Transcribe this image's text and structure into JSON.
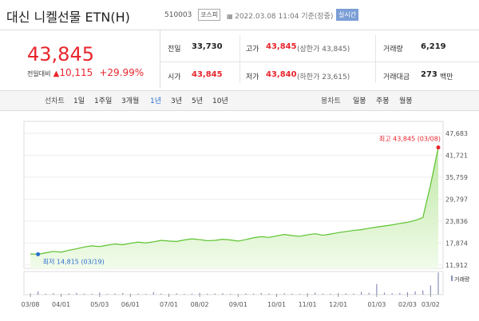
{
  "header": {
    "title": "대신 니켈선물 ETN(H)",
    "code": "510003",
    "market": "코스피",
    "timestamp": "2022.03.08 11:04 기준(장중)",
    "realtime": "실시간"
  },
  "quote": {
    "price": "43,845",
    "change_label": "전일대비",
    "change": "10,115",
    "change_rate": "+29.99%"
  },
  "stats": [
    {
      "label": "전일",
      "value": "33,730"
    },
    {
      "label": "고가",
      "value": "43,845",
      "note": "(상한가 43,845)"
    },
    {
      "label": "거래량",
      "value": "6,219"
    },
    {
      "label": "시가",
      "value": "43,845"
    },
    {
      "label": "저가",
      "value": "43,840",
      "note": "(하한가 23,615)"
    },
    {
      "label": "거래대금",
      "value": "273",
      "unit": "백만"
    }
  ],
  "line_tabs": {
    "label": "선차트",
    "items": [
      "1일",
      "1주일",
      "3개월",
      "1년",
      "3년",
      "5년",
      "10년"
    ],
    "selected": 3
  },
  "candle_tabs": {
    "label": "봉차트",
    "items": [
      "일봉",
      "주봉",
      "월봉"
    ]
  },
  "chart_data": {
    "type": "line",
    "categories": [
      "03/08",
      null,
      null,
      null,
      "04/01",
      null,
      null,
      null,
      null,
      "05/03",
      null,
      null,
      null,
      "06/01",
      null,
      null,
      null,
      null,
      "07/01",
      null,
      null,
      null,
      "08/02",
      null,
      null,
      null,
      null,
      "09/01",
      null,
      null,
      null,
      null,
      "10/01",
      null,
      null,
      null,
      "11/01",
      null,
      null,
      null,
      "12/01",
      null,
      null,
      null,
      null,
      "01/03",
      null,
      null,
      null,
      "02/03",
      null,
      null,
      "03/02",
      null
    ],
    "values": [
      14900,
      14815,
      15200,
      15600,
      15400,
      15900,
      16300,
      16800,
      17100,
      16900,
      17300,
      17600,
      17400,
      17800,
      18100,
      17900,
      18200,
      18600,
      18400,
      18300,
      18700,
      19000,
      18800,
      18500,
      18600,
      18900,
      18700,
      18400,
      18800,
      19300,
      19600,
      19400,
      19800,
      20200,
      19900,
      19700,
      20100,
      20400,
      20000,
      20300,
      20700,
      21000,
      21300,
      21500,
      21900,
      22200,
      22500,
      22800,
      23200,
      23500,
      24000,
      24800,
      33730,
      43845
    ],
    "color": "#5cc22e",
    "ylim": [
      11000,
      49200
    ],
    "yticks": [
      {
        "value": 11912,
        "label": "11,912"
      },
      {
        "value": 17874,
        "label": "17,874"
      },
      {
        "value": 23836,
        "label": "23,836"
      },
      {
        "value": 29797,
        "label": "29,797"
      },
      {
        "value": 35759,
        "label": "35,759"
      },
      {
        "value": 41721,
        "label": "41,721"
      },
      {
        "value": 47683,
        "label": "47,683"
      }
    ],
    "grid": true,
    "high_label": "최고 43,845 (03/08)",
    "low_label": "최저 14,815 (03/19)",
    "volume": {
      "label": "거래량",
      "color": "#8c90b8",
      "ylim": [
        0,
        6500
      ],
      "values": [
        300,
        900,
        250,
        400,
        200,
        350,
        500,
        300,
        250,
        600,
        200,
        300,
        450,
        250,
        300,
        200,
        700,
        300,
        250,
        350,
        200,
        300,
        500,
        250,
        300,
        400,
        250,
        200,
        350,
        300,
        450,
        300,
        250,
        400,
        300,
        200,
        350,
        600,
        300,
        250,
        400,
        350,
        300,
        800,
        500,
        3000,
        600,
        400,
        500,
        700,
        900,
        1200,
        2600,
        6219
      ]
    }
  }
}
